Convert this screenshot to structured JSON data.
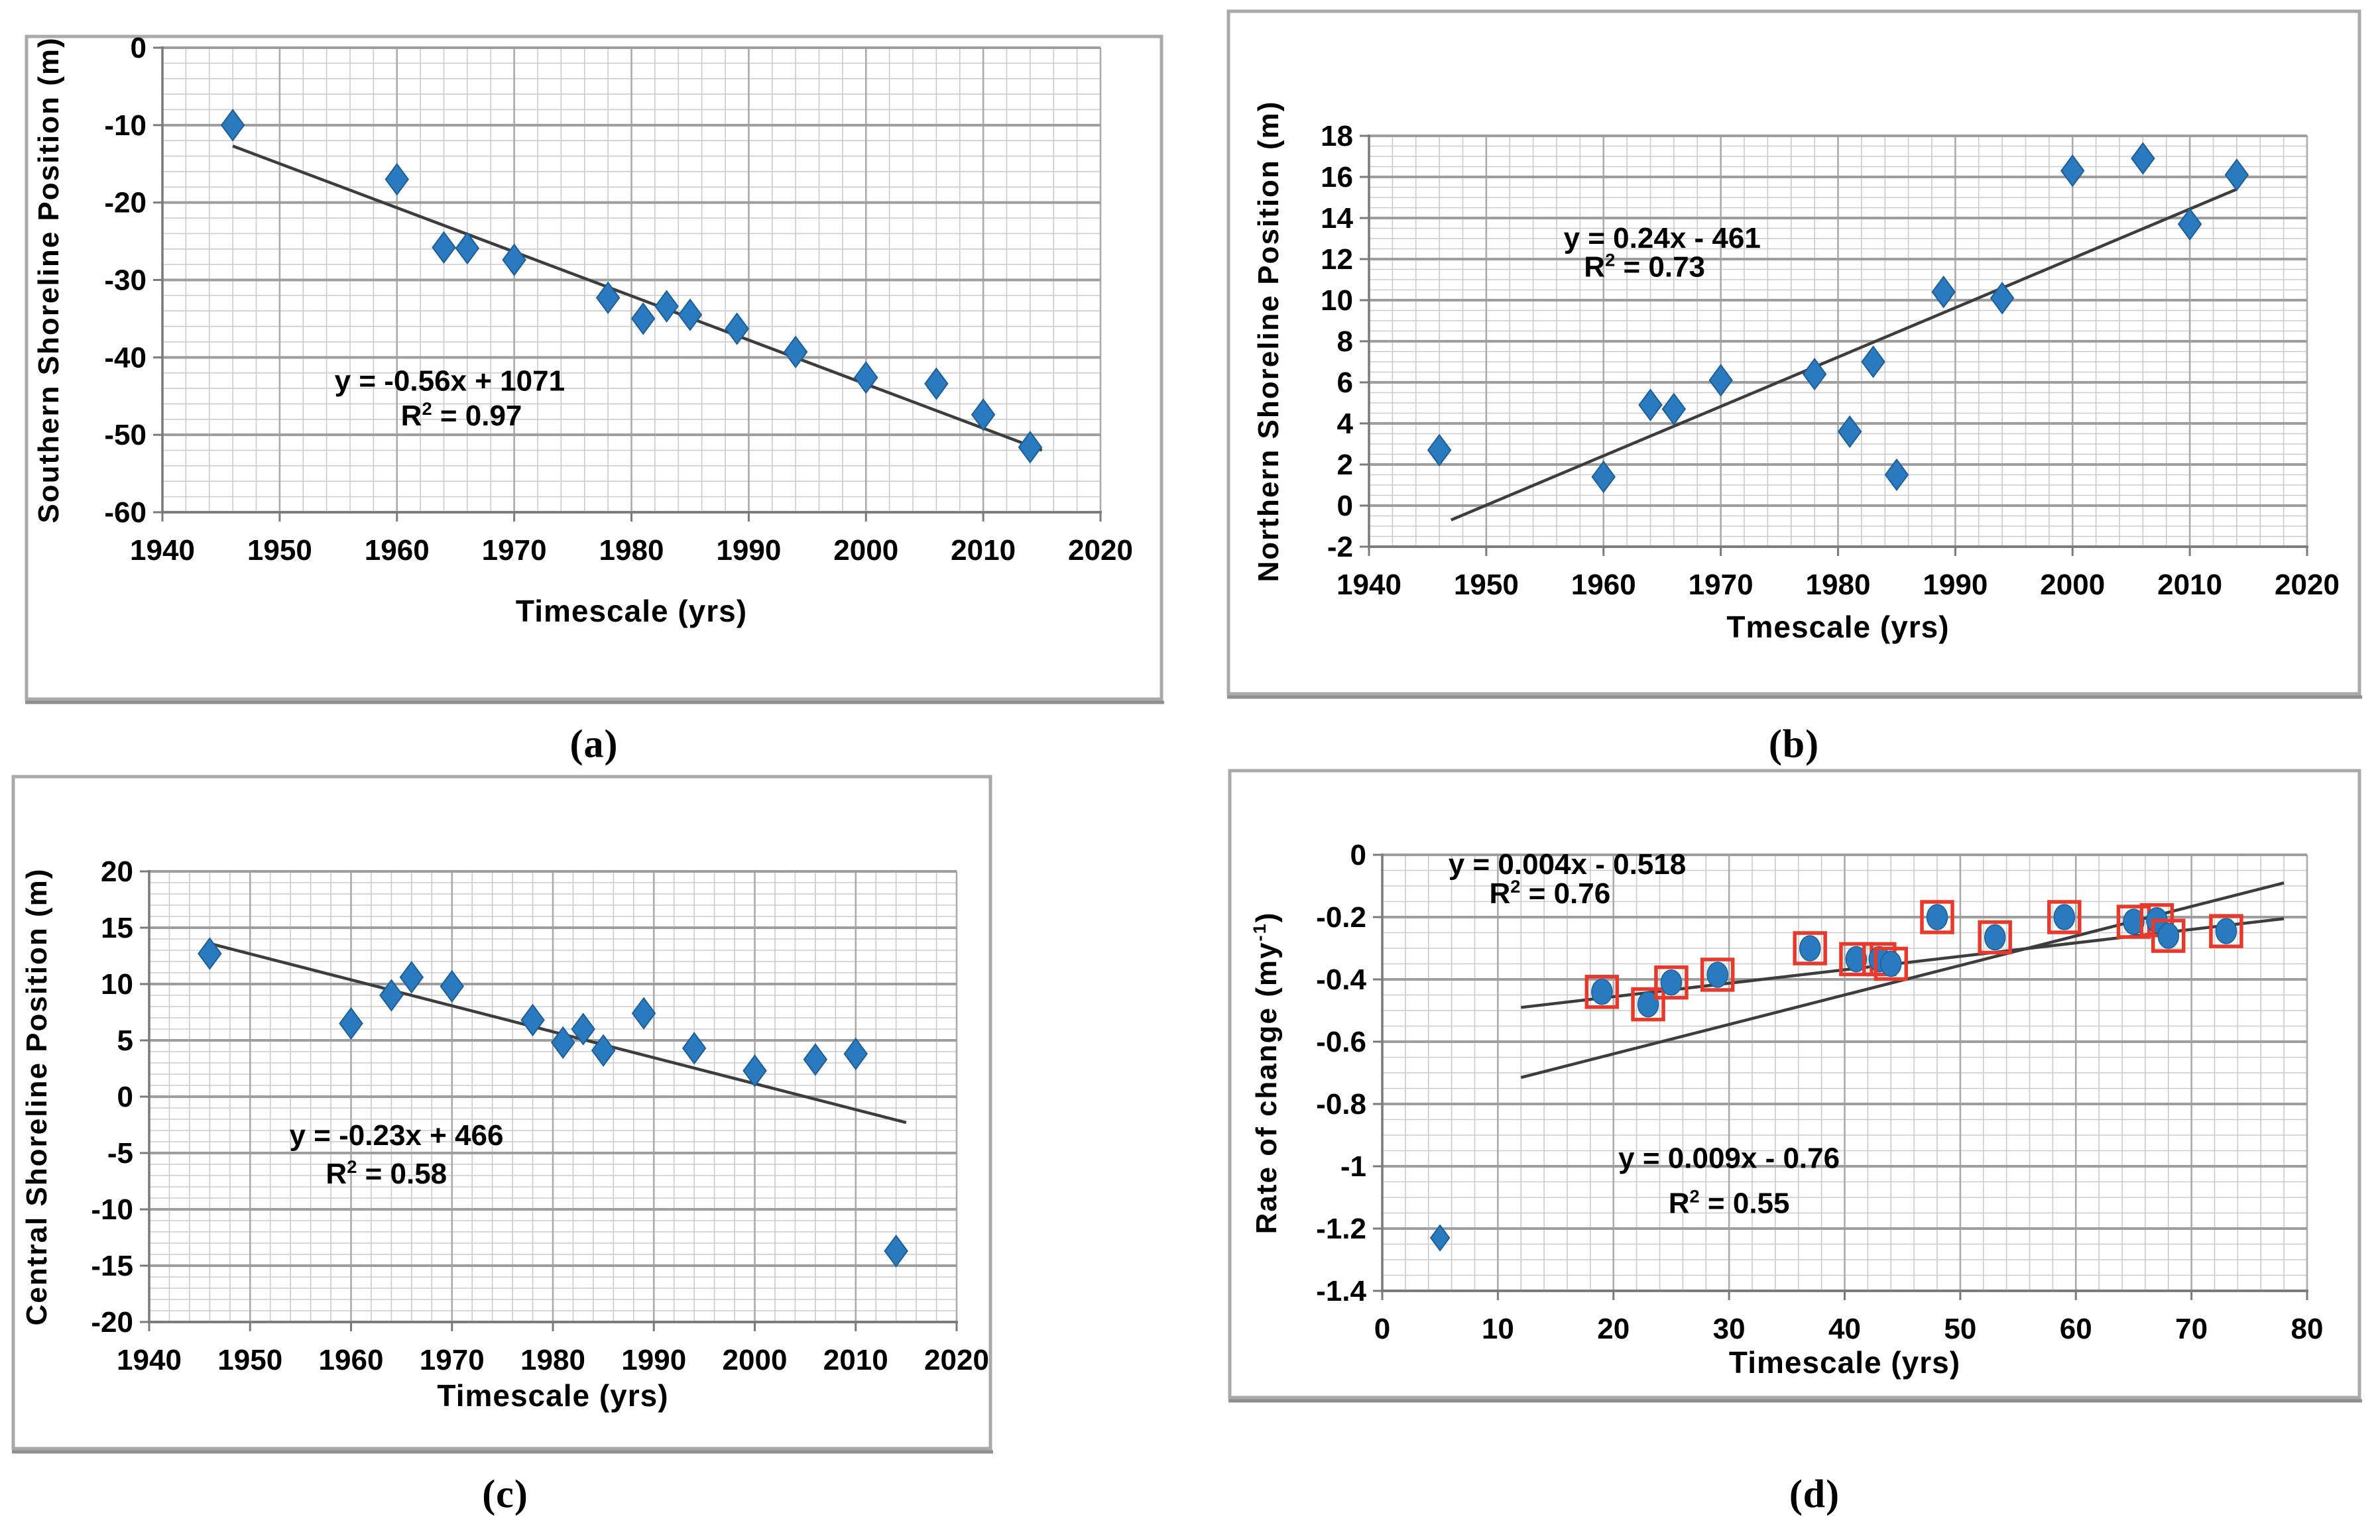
{
  "colors": {
    "background": "#ffffff",
    "marker_fill": "#2A7ABF",
    "marker_stroke": "#1E5E95",
    "outlier_box": "#E8392D",
    "trendline": "#3D3D3D",
    "grid_minor": "#CBCBCB",
    "grid_major_v": "#ABABAB",
    "grid_major_h": "#9E9E9E",
    "axis": "#7A7A7A",
    "panel_border": "#A9A9A9",
    "text": "#000000"
  },
  "chart_data": [
    {
      "id": "a",
      "type": "scatter",
      "caption": "(a)",
      "x_label": "Timescale (yrs)",
      "y_label": [
        {
          "t": "Southern Shoreline Position (m)"
        }
      ],
      "x_range": [
        1940,
        2020
      ],
      "x_major": 10,
      "x_minor": 2,
      "y_range": [
        -60,
        0
      ],
      "y_major": 10,
      "y_minor": 2,
      "legend": null,
      "series": [
        {
          "name": "southern shoreline",
          "marker": "diamond",
          "points": [
            [
              1946,
              -10
            ],
            [
              1960,
              -17
            ],
            [
              1964,
              -25.8
            ],
            [
              1966,
              -25.9
            ],
            [
              1970,
              -27.4
            ],
            [
              1978,
              -32.3
            ],
            [
              1981,
              -35.0
            ],
            [
              1983,
              -33.4
            ],
            [
              1985,
              -34.5
            ],
            [
              1989,
              -36.3
            ],
            [
              1994,
              -39.3
            ],
            [
              2000,
              -42.6
            ],
            [
              2006,
              -43.4
            ],
            [
              2010,
              -47.4
            ],
            [
              2014,
              -51.6
            ]
          ]
        }
      ],
      "trendlines": [
        {
          "x1": 1946,
          "y1": -12.7,
          "x2": 2015,
          "y2": -52.0
        }
      ],
      "annotations": [
        {
          "x": 1964.5,
          "y": -44.3,
          "segments": [
            {
              "t": "y = -0.56x + 1071"
            }
          ]
        },
        {
          "x": 1965.5,
          "y": -48.8,
          "segments": [
            {
              "t": "R"
            },
            {
              "t": "2",
              "sup": true
            },
            {
              "t": " = 0.97"
            }
          ]
        }
      ]
    },
    {
      "id": "b",
      "type": "scatter",
      "caption": "(b)",
      "x_label": "Tmescale (yrs)",
      "y_label": [
        {
          "t": "Northern Shoreline Position (m)"
        }
      ],
      "x_range": [
        1940,
        2020
      ],
      "x_major": 10,
      "x_minor": 2,
      "y_range": [
        -2,
        18
      ],
      "y_major": 2,
      "y_minor": 0.5,
      "legend": null,
      "series": [
        {
          "name": "northern shoreline",
          "marker": "diamond",
          "points": [
            [
              1946,
              2.7
            ],
            [
              1960,
              1.4
            ],
            [
              1964,
              4.9
            ],
            [
              1966,
              4.7
            ],
            [
              1970,
              6.1
            ],
            [
              1978,
              6.4
            ],
            [
              1981,
              3.6
            ],
            [
              1983,
              7.0
            ],
            [
              1985,
              1.5
            ],
            [
              1989,
              10.4
            ],
            [
              1994,
              10.1
            ],
            [
              2000,
              16.3
            ],
            [
              2006,
              16.9
            ],
            [
              2010,
              13.7
            ],
            [
              2014,
              16.1
            ]
          ]
        }
      ],
      "trendlines": [
        {
          "x1": 1947,
          "y1": -0.7,
          "x2": 2014,
          "y2": 15.4
        }
      ],
      "annotations": [
        {
          "x": 1965,
          "y": 12.55,
          "segments": [
            {
              "t": "y = 0.24x - 461"
            }
          ]
        },
        {
          "x": 1963.5,
          "y": 11.15,
          "segments": [
            {
              "t": "R"
            },
            {
              "t": "2",
              "sup": true
            },
            {
              "t": " = 0.73"
            }
          ]
        }
      ]
    },
    {
      "id": "c",
      "type": "scatter",
      "caption": "(c)",
      "x_label": "Timescale (yrs)",
      "y_label": [
        {
          "t": "Central Shoreline Position (m)"
        }
      ],
      "x_range": [
        1940,
        2020
      ],
      "x_major": 10,
      "x_minor": 2,
      "y_range": [
        -20,
        20
      ],
      "y_major": 5,
      "y_minor": 1,
      "legend": null,
      "series": [
        {
          "name": "central shoreline",
          "marker": "diamond",
          "points": [
            [
              1946,
              12.7
            ],
            [
              1960,
              6.5
            ],
            [
              1964,
              9.0
            ],
            [
              1966,
              10.6
            ],
            [
              1970,
              9.8
            ],
            [
              1978,
              6.8
            ],
            [
              1981,
              4.8
            ],
            [
              1983,
              6.0
            ],
            [
              1985,
              4.1
            ],
            [
              1989,
              7.4
            ],
            [
              1994,
              4.3
            ],
            [
              2000,
              2.3
            ],
            [
              2006,
              3.3
            ],
            [
              2010,
              3.8
            ],
            [
              2014,
              -13.7
            ]
          ]
        }
      ],
      "trendlines": [
        {
          "x1": 1946,
          "y1": 13.6,
          "x2": 2015,
          "y2": -2.3
        }
      ],
      "annotations": [
        {
          "x": 1964.5,
          "y": -4.3,
          "segments": [
            {
              "t": "y = -0.23x + 466"
            }
          ]
        },
        {
          "x": 1963.5,
          "y": -7.7,
          "segments": [
            {
              "t": "R"
            },
            {
              "t": "2",
              "sup": true
            },
            {
              "t": " = 0.58"
            }
          ]
        }
      ]
    },
    {
      "id": "d",
      "type": "scatter",
      "caption": "(d)",
      "x_label": "Timescale (yrs)",
      "y_label": [
        {
          "t": "Rate of change (my"
        },
        {
          "t": "-1",
          "sup": true
        },
        {
          "t": ")"
        }
      ],
      "x_range": [
        0,
        80
      ],
      "x_major": 10,
      "x_minor": 2,
      "y_range": [
        -1.4,
        0
      ],
      "y_major": 0.2,
      "y_minor": 0.05,
      "legend": null,
      "series": [
        {
          "name": "rates (boxed)",
          "marker": "circle-boxed",
          "points": [
            [
              19,
              -0.44
            ],
            [
              23,
              -0.48
            ],
            [
              25,
              -0.41
            ],
            [
              29,
              -0.385
            ],
            [
              37,
              -0.3
            ],
            [
              41,
              -0.335
            ],
            [
              43,
              -0.335
            ],
            [
              44,
              -0.35
            ],
            [
              48,
              -0.2
            ],
            [
              53,
              -0.265
            ],
            [
              59,
              -0.2
            ],
            [
              65,
              -0.215
            ],
            [
              67,
              -0.21
            ],
            [
              68,
              -0.26
            ],
            [
              73,
              -0.245
            ]
          ]
        },
        {
          "name": "rate outlier",
          "marker": "diamond-small",
          "points": [
            [
              5,
              -1.23
            ]
          ]
        }
      ],
      "trendlines": [
        {
          "x1": 12,
          "y1": -0.49,
          "x2": 78,
          "y2": -0.205
        },
        {
          "x1": 12,
          "y1": -0.715,
          "x2": 78,
          "y2": -0.09
        }
      ],
      "annotations": [
        {
          "x": 16,
          "y": -0.062,
          "segments": [
            {
              "t": "y = 0.004x - 0.518"
            }
          ]
        },
        {
          "x": 14.5,
          "y": -0.155,
          "segments": [
            {
              "t": "R"
            },
            {
              "t": "2",
              "sup": true
            },
            {
              "t": " = 0.76"
            }
          ]
        },
        {
          "x": 30,
          "y": -1.005,
          "segments": [
            {
              "t": "y = 0.009x - 0.76"
            }
          ]
        },
        {
          "x": 30,
          "y": -1.15,
          "segments": [
            {
              "t": "R"
            },
            {
              "t": "2",
              "sup": true
            },
            {
              "t": " = 0.55"
            }
          ]
        }
      ]
    }
  ]
}
